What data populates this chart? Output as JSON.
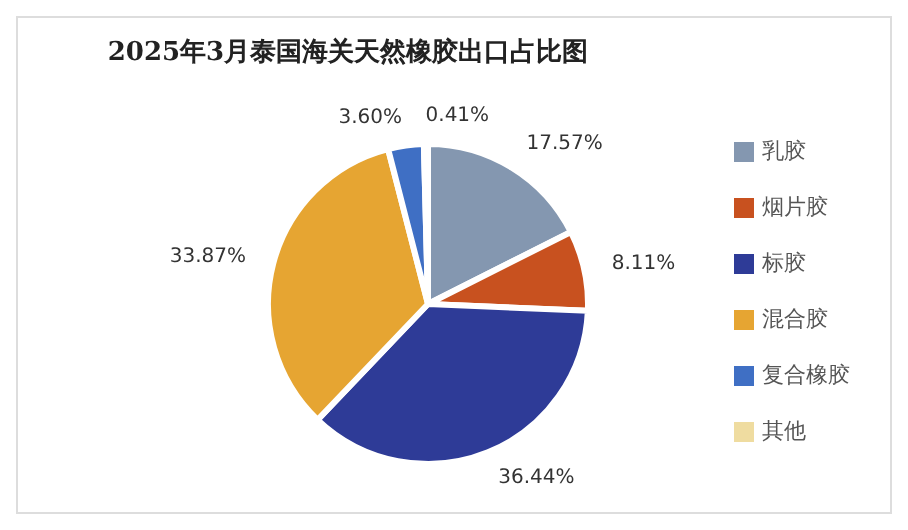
{
  "chart_data": {
    "type": "pie",
    "title": "2025年3月泰国海关天然橡胶出口占比图",
    "categories": [
      "乳胶",
      "烟片胶",
      "标胶",
      "混合胶",
      "复合橡胶",
      "其他"
    ],
    "values": [
      17.57,
      8.11,
      36.44,
      33.87,
      3.6,
      0.41
    ],
    "colors": [
      "#8497b0",
      "#c8511f",
      "#2e3b97",
      "#e6a532",
      "#3f6fc4",
      "#efdca0"
    ],
    "value_labels": [
      "17.57%",
      "8.11%",
      "36.44%",
      "33.87%",
      "3.60%",
      "0.41%"
    ],
    "legend": "right"
  }
}
